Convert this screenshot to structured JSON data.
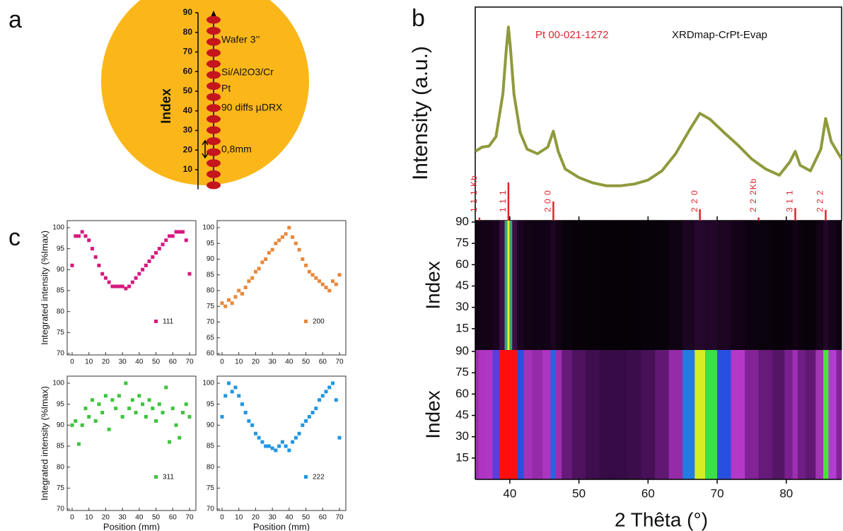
{
  "panels": [
    "a",
    "b",
    "c"
  ],
  "wafer": {
    "color": "#fbb719",
    "spot_color": "#c4161c",
    "ylabel": "Index",
    "ylim": [
      0,
      90
    ],
    "yticks": [
      10,
      20,
      30,
      40,
      50,
      60,
      70,
      80,
      90
    ],
    "title": "Wafer 3’’",
    "layers": [
      "Si/Al2O3/Cr",
      "Pt"
    ],
    "note": "90 diffs µDRX",
    "spacing": "0,8mm"
  },
  "chart_data": [
    {
      "type": "line",
      "ylabel": "Intensity (a.u.)",
      "xlabel": "2 Thêta (°)",
      "xlim": [
        35,
        88
      ],
      "xticks": [
        40,
        50,
        60,
        70,
        80
      ],
      "ylim": [
        20,
        10000
      ],
      "ylog": true,
      "x": [
        35,
        36,
        37,
        38,
        39,
        39.5,
        39.8,
        40.1,
        40.6,
        41.5,
        42.5,
        44,
        45.5,
        46.3,
        47,
        48,
        50,
        52,
        54,
        56,
        58,
        60,
        62,
        64,
        66,
        67.5,
        69,
        71,
        73,
        75,
        77,
        79,
        80.5,
        81.3,
        82,
        83.5,
        85,
        85.7,
        86.5,
        88
      ],
      "series": [
        {
          "name": "XRDmap-CrPt-Evap",
          "color": "#8f9a3c",
          "values": [
            150,
            170,
            175,
            230,
            800,
            3000,
            5600,
            3000,
            800,
            260,
            160,
            140,
            170,
            270,
            150,
            90,
            70,
            60,
            55,
            55,
            58,
            65,
            85,
            140,
            280,
            454,
            380,
            260,
            180,
            120,
            90,
            75,
            110,
            150,
            100,
            85,
            160,
            390,
            200,
            120
          ]
        }
      ],
      "reference": {
        "name": "Pt 00-021-1272",
        "color": "#d9262e",
        "x": [
          35.6,
          39.8,
          46.3,
          67.5,
          76,
          81.3,
          85.7
        ],
        "values": [
          8,
          100,
          50,
          30,
          8,
          33,
          28
        ],
        "labels": [
          "1 1 1 Kb",
          "1 1 1",
          "2 0 0",
          "2 2 0",
          "2 2 2Kb",
          "3 1 1",
          "2 2 2"
        ]
      }
    },
    {
      "type": "heatmap",
      "scale": "linear",
      "ylabel": "Index",
      "ylim": [
        0,
        91
      ],
      "yticks": [
        15,
        30,
        45,
        60,
        75,
        90
      ]
    },
    {
      "type": "heatmap",
      "scale": "log",
      "ylabel": "Index",
      "ylim": [
        0,
        91
      ],
      "yticks": [
        15,
        30,
        45,
        60,
        75,
        90
      ]
    },
    {
      "type": "scatter",
      "ylabel": "Integrated intensity (%Imax)",
      "xlim": [
        0,
        70
      ],
      "xticks": [
        0,
        10,
        20,
        30,
        40,
        50,
        60,
        70
      ],
      "ylim": [
        70,
        100
      ],
      "yticks": [
        70,
        75,
        80,
        85,
        90,
        95,
        100
      ],
      "x": [
        0,
        2,
        4,
        6,
        8,
        10,
        12,
        14,
        16,
        18,
        20,
        22,
        24,
        26,
        28,
        30,
        32,
        34,
        36,
        38,
        40,
        42,
        44,
        46,
        48,
        50,
        52,
        54,
        56,
        58,
        60,
        62,
        64,
        66,
        68,
        70
      ],
      "series": [
        {
          "name": "111",
          "color": "#d6187f",
          "values": [
            91,
            98,
            98,
            99,
            98,
            97,
            95,
            93,
            91,
            89,
            88,
            87,
            86,
            86,
            86,
            86,
            85.5,
            86,
            87,
            88,
            89,
            90,
            91,
            92,
            93,
            94,
            95,
            96,
            97,
            98,
            98,
            99,
            99,
            99,
            97,
            89
          ]
        }
      ]
    },
    {
      "type": "scatter",
      "xlim": [
        0,
        70
      ],
      "xticks": [
        0,
        10,
        20,
        30,
        40,
        50,
        60,
        70
      ],
      "ylim": [
        60,
        100
      ],
      "yticks": [
        60,
        65,
        70,
        75,
        80,
        85,
        90,
        95,
        100
      ],
      "x": [
        0,
        2,
        4,
        6,
        8,
        10,
        12,
        14,
        16,
        18,
        20,
        22,
        24,
        26,
        28,
        30,
        32,
        34,
        36,
        38,
        40,
        42,
        44,
        46,
        48,
        50,
        52,
        54,
        56,
        58,
        60,
        62,
        64,
        66,
        68,
        70
      ],
      "series": [
        {
          "name": "200",
          "color": "#e8883a",
          "values": [
            76,
            75,
            77,
            76,
            78,
            80,
            79,
            81,
            83,
            84,
            86,
            87,
            89,
            90,
            92,
            93,
            95,
            96,
            97,
            98,
            100,
            97,
            95,
            93,
            90,
            88,
            86,
            85,
            84,
            83,
            82,
            81,
            80,
            83,
            82,
            85
          ]
        }
      ]
    },
    {
      "type": "scatter",
      "ylabel": "Integrated intensity (%Imax)",
      "xlabel": "Position (mm)",
      "xlim": [
        0,
        70
      ],
      "xticks": [
        0,
        10,
        20,
        30,
        40,
        50,
        60,
        70
      ],
      "ylim": [
        70,
        100
      ],
      "yticks": [
        70,
        75,
        80,
        85,
        90,
        95,
        100
      ],
      "x": [
        0,
        2,
        4,
        6,
        8,
        10,
        12,
        14,
        16,
        18,
        20,
        22,
        24,
        26,
        28,
        30,
        32,
        34,
        36,
        38,
        40,
        42,
        44,
        46,
        48,
        50,
        52,
        54,
        56,
        58,
        60,
        62,
        64,
        66,
        68,
        70
      ],
      "series": [
        {
          "name": "311",
          "color": "#3dc43d",
          "values": [
            90,
            91,
            85.5,
            90,
            94,
            92,
            96,
            91,
            95,
            93,
            97,
            89,
            96,
            94,
            97,
            92,
            100,
            94,
            96,
            93,
            97,
            95,
            92,
            96,
            94,
            91,
            95,
            93,
            99,
            86,
            94,
            90,
            87,
            93,
            95,
            92
          ]
        }
      ]
    },
    {
      "type": "scatter",
      "xlabel": "Position (mm)",
      "xlim": [
        0,
        70
      ],
      "xticks": [
        0,
        10,
        20,
        30,
        40,
        50,
        60,
        70
      ],
      "ylim": [
        70,
        100
      ],
      "yticks": [
        70,
        75,
        80,
        85,
        90,
        95,
        100
      ],
      "x": [
        0,
        2,
        4,
        6,
        8,
        10,
        12,
        14,
        16,
        18,
        20,
        22,
        24,
        26,
        28,
        30,
        32,
        34,
        36,
        38,
        40,
        42,
        44,
        46,
        48,
        50,
        52,
        54,
        56,
        58,
        60,
        62,
        64,
        66,
        68,
        70
      ],
      "series": [
        {
          "name": "222",
          "color": "#2196e0",
          "values": [
            92,
            97,
            100,
            98,
            99,
            97,
            95,
            93,
            91,
            90,
            88,
            87,
            86,
            85,
            85,
            84.5,
            84,
            85,
            86,
            85,
            84,
            86,
            87,
            88,
            90,
            91,
            92,
            93,
            94,
            96,
            97,
            98,
            99,
            100,
            96,
            87
          ]
        }
      ]
    }
  ]
}
